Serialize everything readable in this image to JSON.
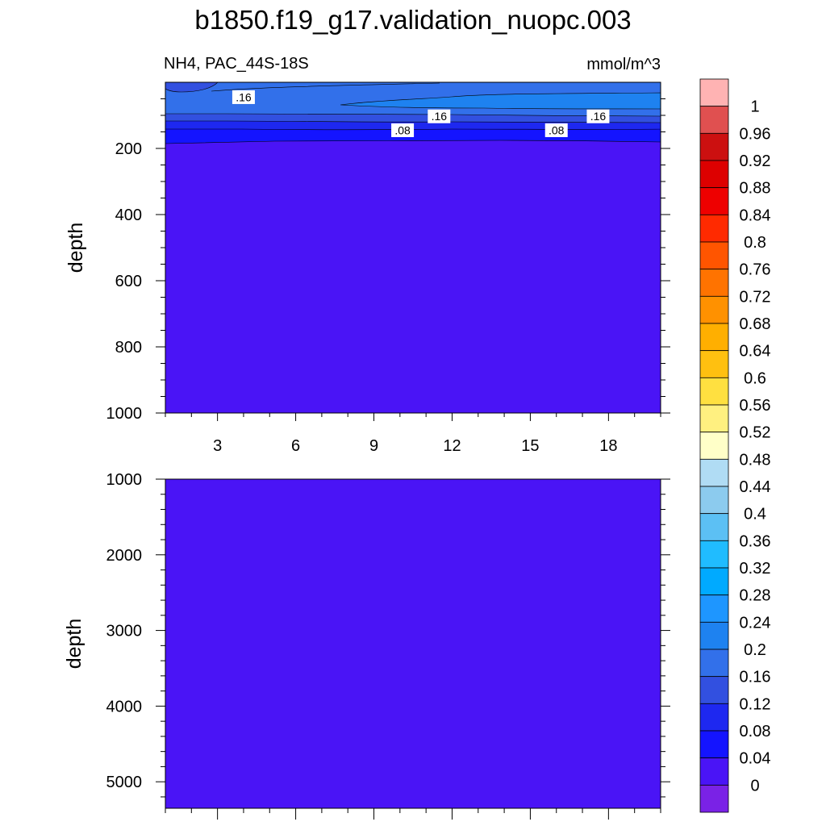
{
  "title": "b1850.f19_g17.validation_nuopc.003",
  "variable_label": "NH4, PAC_44S-18S",
  "units_label": "mmol/m^3",
  "colors": {
    "frame": "#000000",
    "background": "#ffffff",
    "label_box": "#ffffff"
  },
  "chart_data": [
    {
      "type": "heatmap",
      "panel": "top",
      "title": "",
      "xlabel": "",
      "ylabel": "depth",
      "xlim": [
        1,
        20
      ],
      "ylim": [
        1000,
        0
      ],
      "xticks": [
        3,
        6,
        9,
        12,
        15,
        18
      ],
      "yticks": [
        200,
        400,
        600,
        800,
        1000
      ],
      "contour_levels_drawn": [
        0.04,
        0.08,
        0.12,
        0.16,
        0.2
      ],
      "contour_labels": [
        {
          "text": ".16",
          "x": 4.0,
          "depth": 45
        },
        {
          "text": ".16",
          "x": 11.5,
          "depth": 103
        },
        {
          "text": ".16",
          "x": 17.6,
          "depth": 103
        },
        {
          "text": ".08",
          "x": 10.1,
          "depth": 145
        },
        {
          "text": ".08",
          "x": 16.0,
          "depth": 145
        }
      ],
      "field_summary": "values 0.16-0.24 near surface, decreasing to 0-0.04 below about 190 m"
    },
    {
      "type": "heatmap",
      "panel": "bottom",
      "title": "",
      "xlabel": "",
      "ylabel": "depth",
      "xlim": [
        1,
        20
      ],
      "ylim": [
        5350,
        1000
      ],
      "xticks": [
        3,
        6,
        9,
        12,
        15,
        18
      ],
      "yticks": [
        1000,
        2000,
        3000,
        4000,
        5000
      ],
      "field_summary": "uniform 0-0.04"
    }
  ],
  "colorbar": {
    "labels": [
      "1",
      "0.96",
      "0.92",
      "0.88",
      "0.84",
      "0.8",
      "0.76",
      "0.72",
      "0.68",
      "0.64",
      "0.6",
      "0.56",
      "0.52",
      "0.48",
      "0.44",
      "0.4",
      "0.36",
      "0.32",
      "0.28",
      "0.24",
      "0.2",
      "0.16",
      "0.12",
      "0.08",
      "0.04",
      "0"
    ],
    "levels": [
      1,
      0.96,
      0.92,
      0.88,
      0.84,
      0.8,
      0.76,
      0.72,
      0.68,
      0.64,
      0.6,
      0.56,
      0.52,
      0.48,
      0.44,
      0.4,
      0.36,
      0.32,
      0.28,
      0.24,
      0.2,
      0.16,
      0.12,
      0.08,
      0.04,
      0
    ],
    "colors_top_to_bottom": [
      "#ffb3b3",
      "#e05050",
      "#cc1010",
      "#dd0000",
      "#ee0000",
      "#ff2a00",
      "#ff5500",
      "#ff7300",
      "#ff9100",
      "#ffaf00",
      "#ffc010",
      "#ffe040",
      "#fff080",
      "#ffffc8",
      "#b0dcf4",
      "#8ccbee",
      "#5cc0f4",
      "#20bcff",
      "#00aaff",
      "#1e96ff",
      "#1e82f0",
      "#3270ea",
      "#3250e0",
      "#1e28f0",
      "#1414ff",
      "#4a14f6",
      "#7a22e6"
    ]
  }
}
